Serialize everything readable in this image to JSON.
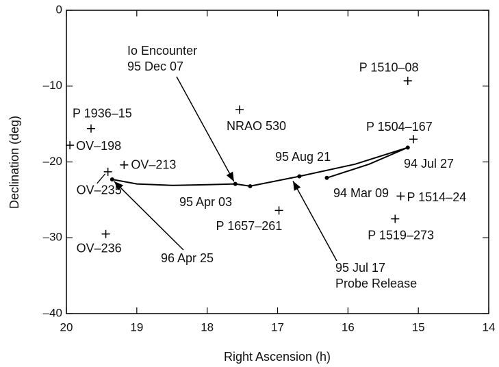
{
  "chart_data": {
    "type": "scatter",
    "xlabel": "Right Ascension (h)",
    "ylabel": "Declination (deg)",
    "xlim": [
      20,
      14
    ],
    "ylim": [
      -40,
      0
    ],
    "xticks": [
      20,
      19,
      18,
      17,
      16,
      15,
      14
    ],
    "yticks": [
      0,
      {
        "value": -10,
        "label": "–10"
      },
      {
        "value": -20,
        "label": "–20"
      },
      {
        "value": -30,
        "label": "–30"
      },
      {
        "value": -40,
        "label": "–40"
      }
    ],
    "color": "#000000",
    "sources": [
      {
        "name": "P 1510–08",
        "x": 15.15,
        "y": -9.3
      },
      {
        "name": "NRAO 530",
        "x": 17.54,
        "y": -13.1
      },
      {
        "name": "P 1936–15",
        "x": 19.65,
        "y": -15.6
      },
      {
        "name": "OV–198",
        "x": 19.95,
        "y": -17.8
      },
      {
        "name": "P 1504–167",
        "x": 15.07,
        "y": -17.0
      },
      {
        "name": "OV–213",
        "x": 19.18,
        "y": -20.4
      },
      {
        "name": "OV–235",
        "x": 19.41,
        "y": -21.3
      },
      {
        "name": "P 1514–24",
        "x": 15.25,
        "y": -24.5
      },
      {
        "name": "P 1657–261",
        "x": 16.98,
        "y": -26.4
      },
      {
        "name": "P 1519–273",
        "x": 15.33,
        "y": -27.5
      },
      {
        "name": "OV–236",
        "x": 19.44,
        "y": -29.5
      }
    ],
    "trajectory": {
      "x": [
        16.3,
        15.7,
        15.15,
        15.9,
        16.69,
        17.39,
        17.6,
        18.0,
        18.5,
        19.0,
        19.35
      ],
      "y": [
        -22.1,
        -20.3,
        -18.1,
        -20.3,
        -21.9,
        -23.2,
        -22.9,
        -23.0,
        -23.1,
        -22.9,
        -22.3
      ]
    },
    "events": [
      {
        "label": [
          "Io Encounter",
          "95  Dec 07"
        ],
        "x": 17.6,
        "y": -22.9
      },
      {
        "label": [
          "95 Apr 03"
        ],
        "x": 17.39,
        "y": -23.2
      },
      {
        "label": [
          "95 Aug 21"
        ],
        "x": 16.69,
        "y": -21.9
      },
      {
        "label": [
          "95 Jul 17",
          "Probe Release"
        ],
        "x": 16.8,
        "y": -22.2
      },
      {
        "label": [
          "94 Mar 09"
        ],
        "x": 16.3,
        "y": -22.1
      },
      {
        "label": [
          "94 Jul 27"
        ],
        "x": 15.15,
        "y": -18.1
      },
      {
        "label": [
          "96 Apr 25"
        ],
        "x": 19.35,
        "y": -22.3
      }
    ]
  }
}
